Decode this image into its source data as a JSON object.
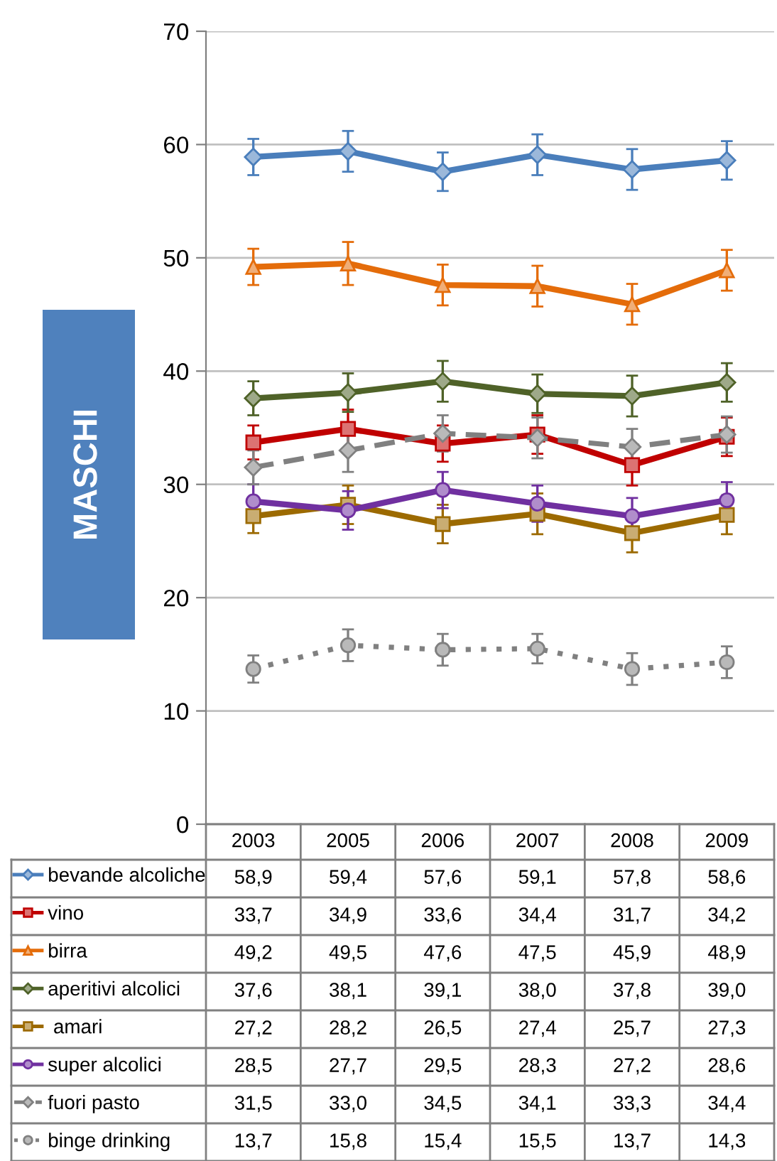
{
  "chart_data": {
    "type": "line",
    "ylabel": "MASCHI",
    "categories": [
      "2003",
      "2005",
      "2006",
      "2007",
      "2008",
      "2009"
    ],
    "ylim": [
      0,
      70
    ],
    "yticks": [
      0,
      10,
      20,
      30,
      40,
      50,
      60,
      70
    ],
    "grid": "y",
    "legend": "bottom",
    "series": [
      {
        "name": "bevande alcoliche",
        "color": "#4a7ebb",
        "marker": "diamond",
        "line_style": "solid",
        "values": [
          58.9,
          59.4,
          57.6,
          59.1,
          57.8,
          58.6
        ],
        "value_labels": [
          "58,9",
          "59,4",
          "57,6",
          "59,1",
          "57,8",
          "58,6"
        ],
        "errors": [
          1.6,
          1.8,
          1.7,
          1.8,
          1.8,
          1.7
        ]
      },
      {
        "name": "vino",
        "color": "#c00000",
        "marker": "square",
        "line_style": "solid",
        "values": [
          33.7,
          34.9,
          33.6,
          34.4,
          31.7,
          34.2
        ],
        "value_labels": [
          "33,7",
          "34,9",
          "33,6",
          "34,4",
          "31,7",
          "34,2"
        ],
        "errors": [
          1.5,
          1.7,
          1.6,
          1.7,
          1.8,
          1.7
        ]
      },
      {
        "name": "birra",
        "color": "#e46c0a",
        "marker": "triangle",
        "line_style": "solid",
        "values": [
          49.2,
          49.5,
          47.6,
          47.5,
          45.9,
          48.9
        ],
        "value_labels": [
          "49,2",
          "49,5",
          "47,6",
          "47,5",
          "45,9",
          "48,9"
        ],
        "errors": [
          1.6,
          1.9,
          1.8,
          1.8,
          1.8,
          1.8
        ]
      },
      {
        "name": "aperitivi alcolici",
        "color": "#4f6228",
        "marker": "diamond",
        "line_style": "solid",
        "values": [
          37.6,
          38.1,
          39.1,
          38.0,
          37.8,
          39.0
        ],
        "value_labels": [
          "37,6",
          "38,1",
          "39,1",
          "38,0",
          "37,8",
          "39,0"
        ],
        "errors": [
          1.5,
          1.7,
          1.8,
          1.7,
          1.8,
          1.7
        ]
      },
      {
        "name": " amari",
        "color": "#9c6a00",
        "marker": "square",
        "line_style": "solid",
        "values": [
          27.2,
          28.2,
          26.5,
          27.4,
          25.7,
          27.3
        ],
        "value_labels": [
          "27,2",
          "28,2",
          "26,5",
          "27,4",
          "25,7",
          "27,3"
        ],
        "errors": [
          1.5,
          1.7,
          1.7,
          1.8,
          1.7,
          1.7
        ]
      },
      {
        "name": "super alcolici",
        "color": "#7030a0",
        "marker": "circle",
        "line_style": "solid",
        "values": [
          28.5,
          27.7,
          29.5,
          28.3,
          27.2,
          28.6
        ],
        "value_labels": [
          "28,5",
          "27,7",
          "29,5",
          "28,3",
          "27,2",
          "28,6"
        ],
        "errors": [
          1.5,
          1.7,
          1.6,
          1.6,
          1.6,
          1.6
        ]
      },
      {
        "name": "fuori pasto",
        "color": "#808080",
        "marker": "diamond",
        "line_style": "dashed",
        "values": [
          31.5,
          33.0,
          34.5,
          34.1,
          33.3,
          34.4
        ],
        "value_labels": [
          "31,5",
          "33,0",
          "34,5",
          "34,1",
          "33,3",
          "34,4"
        ],
        "errors": [
          1.5,
          1.9,
          1.6,
          1.8,
          1.6,
          1.6
        ]
      },
      {
        "name": "binge drinking",
        "color": "#808080",
        "marker": "circle",
        "line_style": "dotted",
        "values": [
          13.7,
          15.8,
          15.4,
          15.5,
          13.7,
          14.3
        ],
        "value_labels": [
          "13,7",
          "15,8",
          "15,4",
          "15,5",
          "13,7",
          "14,3"
        ],
        "errors": [
          1.2,
          1.4,
          1.4,
          1.3,
          1.4,
          1.4
        ]
      }
    ]
  }
}
